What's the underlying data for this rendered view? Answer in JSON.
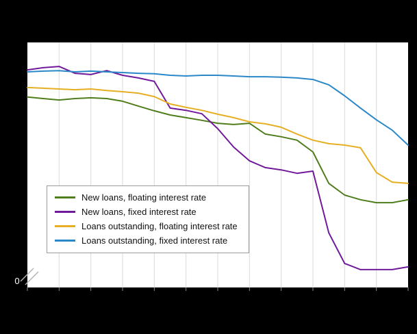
{
  "figure": {
    "background_color": "#000000",
    "plot_background": "#ffffff",
    "gridline_color": "#d9d9d9",
    "tick_color": "#8f8f8f",
    "axis_break_mark_color": "#b4b4b4",
    "y_axis_zero_label": "0"
  },
  "chart_data": {
    "type": "line",
    "title": "",
    "xlabel": "",
    "ylabel": "",
    "grid": "vertical",
    "x_grid_intervals": 12,
    "x_tick_labels": [],
    "y_tick_labels_visible": [
      "0"
    ],
    "axis_break_bottom_left": true,
    "legend_position": "inside bottom-left",
    "ylim": [
      0,
      100
    ],
    "x": [
      0,
      1,
      2,
      3,
      4,
      5,
      6,
      7,
      8,
      9,
      10,
      11,
      12,
      13,
      14,
      15,
      16,
      17,
      18,
      19,
      20,
      21,
      22,
      23,
      24
    ],
    "series": [
      {
        "name": "New loans, floating interest rate",
        "color": "#4f7d1c",
        "values": [
          77.7,
          77.1,
          76.5,
          77.1,
          77.4,
          77.1,
          76.0,
          74.0,
          72.1,
          70.4,
          69.3,
          68.2,
          67.0,
          66.5,
          67.0,
          62.6,
          61.5,
          60.1,
          55.3,
          42.5,
          37.7,
          35.8,
          34.6,
          34.6,
          35.8
        ]
      },
      {
        "name": "New loans, fixed interest rate",
        "color": "#70199b",
        "values": [
          88.8,
          89.7,
          90.2,
          87.4,
          86.9,
          88.5,
          86.6,
          85.5,
          84.1,
          73.2,
          72.3,
          70.9,
          64.8,
          57.3,
          51.7,
          48.9,
          48.0,
          46.6,
          47.5,
          22.3,
          9.8,
          7.3,
          7.3,
          7.3,
          8.4
        ]
      },
      {
        "name": "Loans outstanding, floating interest rate",
        "color": "#e6af23",
        "values": [
          81.6,
          81.3,
          81.0,
          80.7,
          81.0,
          80.4,
          79.9,
          79.3,
          77.9,
          74.9,
          73.5,
          72.3,
          70.7,
          69.3,
          67.6,
          66.8,
          65.4,
          62.6,
          60.1,
          58.7,
          58.1,
          57.0,
          46.9,
          43.0,
          42.5
        ]
      },
      {
        "name": "Loans outstanding, fixed interest rate",
        "color": "#2a87c8",
        "values": [
          88.0,
          88.3,
          88.5,
          88.0,
          88.3,
          88.0,
          87.7,
          87.4,
          87.2,
          86.6,
          86.3,
          86.6,
          86.6,
          86.3,
          86.0,
          86.0,
          85.8,
          85.5,
          84.9,
          82.7,
          78.2,
          73.2,
          68.4,
          64.2,
          58.1
        ]
      }
    ]
  }
}
